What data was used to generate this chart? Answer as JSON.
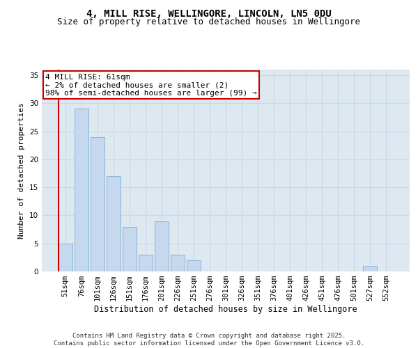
{
  "title1": "4, MILL RISE, WELLINGORE, LINCOLN, LN5 0DU",
  "title2": "Size of property relative to detached houses in Wellingore",
  "xlabel": "Distribution of detached houses by size in Wellingore",
  "ylabel": "Number of detached properties",
  "categories": [
    "51sqm",
    "76sqm",
    "101sqm",
    "126sqm",
    "151sqm",
    "176sqm",
    "201sqm",
    "226sqm",
    "251sqm",
    "276sqm",
    "301sqm",
    "326sqm",
    "351sqm",
    "376sqm",
    "401sqm",
    "426sqm",
    "451sqm",
    "476sqm",
    "501sqm",
    "527sqm",
    "552sqm"
  ],
  "values": [
    5,
    29,
    24,
    17,
    8,
    3,
    9,
    3,
    2,
    0,
    0,
    0,
    0,
    0,
    0,
    0,
    0,
    0,
    0,
    1,
    0
  ],
  "bar_color": "#c5d8ee",
  "bar_edge_color": "#7bafd4",
  "highlight_bar_index": 0,
  "highlight_edge_color": "#cc0000",
  "annotation_text": "4 MILL RISE: 61sqm\n← 2% of detached houses are smaller (2)\n98% of semi-detached houses are larger (99) →",
  "annotation_box_color": "white",
  "annotation_box_edge_color": "#cc0000",
  "ylim": [
    0,
    36
  ],
  "yticks": [
    0,
    5,
    10,
    15,
    20,
    25,
    30,
    35
  ],
  "grid_color": "#c8d8e8",
  "background_color": "#dde8f0",
  "footer": "Contains HM Land Registry data © Crown copyright and database right 2025.\nContains public sector information licensed under the Open Government Licence v3.0.",
  "title1_fontsize": 10,
  "title2_fontsize": 9,
  "xlabel_fontsize": 8.5,
  "ylabel_fontsize": 8,
  "tick_fontsize": 7.5,
  "annotation_fontsize": 8,
  "footer_fontsize": 6.5
}
